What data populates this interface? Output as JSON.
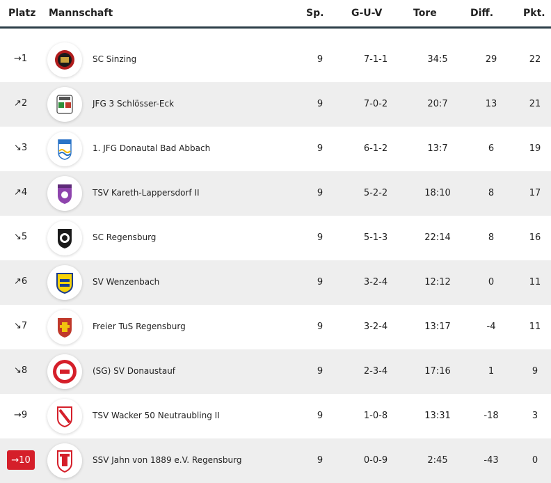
{
  "header": {
    "platz": "Platz",
    "mannschaft": "Mannschaft",
    "sp": "Sp.",
    "guv": "G-U-V",
    "tore": "Tore",
    "diff": "Diff.",
    "pkt": "Pkt."
  },
  "rows": [
    {
      "rank": "→1",
      "team": "SC Sinzing",
      "sp": "9",
      "guv": "7-1-1",
      "tore": "34:5",
      "diff": "29",
      "pkt": "22"
    },
    {
      "rank": "↗2",
      "team": "JFG 3 Schlösser-Eck",
      "sp": "9",
      "guv": "7-0-2",
      "tore": "20:7",
      "diff": "13",
      "pkt": "21"
    },
    {
      "rank": "↘3",
      "team": "1. JFG Donautal Bad Abbach",
      "sp": "9",
      "guv": "6-1-2",
      "tore": "13:7",
      "diff": "6",
      "pkt": "19"
    },
    {
      "rank": "↗4",
      "team": "TSV Kareth-Lappersdorf II",
      "sp": "9",
      "guv": "5-2-2",
      "tore": "18:10",
      "diff": "8",
      "pkt": "17"
    },
    {
      "rank": "↘5",
      "team": "SC Regensburg",
      "sp": "9",
      "guv": "5-1-3",
      "tore": "22:14",
      "diff": "8",
      "pkt": "16"
    },
    {
      "rank": "↗6",
      "team": "SV Wenzenbach",
      "sp": "9",
      "guv": "3-2-4",
      "tore": "12:12",
      "diff": "0",
      "pkt": "11"
    },
    {
      "rank": "↘7",
      "team": "Freier TuS Regensburg",
      "sp": "9",
      "guv": "3-2-4",
      "tore": "13:17",
      "diff": "-4",
      "pkt": "11"
    },
    {
      "rank": "↘8",
      "team": "(SG) SV Donaustauf",
      "sp": "9",
      "guv": "2-3-4",
      "tore": "17:16",
      "diff": "1",
      "pkt": "9"
    },
    {
      "rank": "→9",
      "team": "TSV Wacker 50 Neutraubling II",
      "sp": "9",
      "guv": "1-0-8",
      "tore": "13:31",
      "diff": "-18",
      "pkt": "3"
    },
    {
      "rank": "→10",
      "team": "SSV Jahn von 1889 e.V. Regensburg",
      "sp": "9",
      "guv": "0-0-9",
      "tore": "2:45",
      "diff": "-43",
      "pkt": "0"
    }
  ],
  "colors": {
    "header_rule": "#2c3e48",
    "alt_row": "#eeeeee",
    "relegation_badge": "#d51f2a"
  }
}
